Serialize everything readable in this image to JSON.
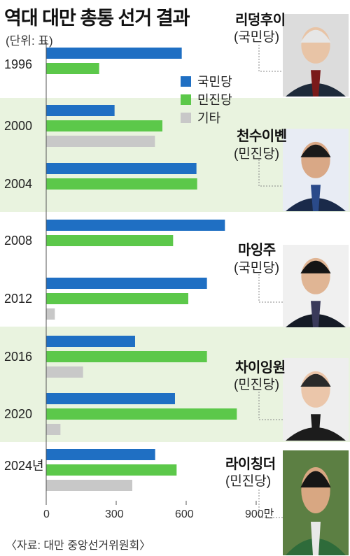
{
  "title": "역대 대만 총통 선거 결과",
  "unit_label": "(단위: 표)",
  "source": "〈자료: 대만 중앙선거위원회〉",
  "colors": {
    "kmt": "#1f6fc3",
    "dpp": "#5cc84a",
    "other": "#c8c8c8",
    "band_light": "#e9f3df",
    "band_white": "#ffffff",
    "axis": "#555555",
    "guide": "#888888"
  },
  "legend": [
    {
      "label": "국민당",
      "color": "#1f6fc3"
    },
    {
      "label": "민진당",
      "color": "#5cc84a"
    },
    {
      "label": "기타",
      "color": "#c8c8c8"
    }
  ],
  "chart_data": {
    "type": "bar",
    "orientation": "horizontal",
    "xunit": "만",
    "xlim": [
      0,
      900
    ],
    "xticks": [
      "0",
      "300",
      "600",
      "900만"
    ],
    "years": [
      "1996",
      "2000",
      "2004",
      "2008",
      "2012",
      "2016",
      "2020",
      "2024년"
    ],
    "series": [
      {
        "name": "국민당",
        "values": [
          581,
          293,
          644,
          766,
          689,
          381,
          552,
          467
        ]
      },
      {
        "name": "민진당",
        "values": [
          227,
          498,
          647,
          544,
          609,
          689,
          817,
          559
        ]
      },
      {
        "name": "기타",
        "values": [
          null,
          466,
          null,
          null,
          37,
          158,
          61,
          369
        ]
      }
    ]
  },
  "presidents": [
    {
      "name": "리덩후이",
      "party": "(국민당)",
      "photo": "portrait-lee-teng-hui"
    },
    {
      "name": "천수이볜",
      "party": "(민진당)",
      "photo": "portrait-chen-shui-bian"
    },
    {
      "name": "마잉주",
      "party": "(국민당)",
      "photo": "portrait-ma-ying-jeou"
    },
    {
      "name": "차이잉원",
      "party": "(민진당)",
      "photo": "portrait-tsai-ing-wen"
    },
    {
      "name": "라이칭더",
      "party": "(민진당)",
      "photo": "portrait-lai-ching-te"
    }
  ]
}
